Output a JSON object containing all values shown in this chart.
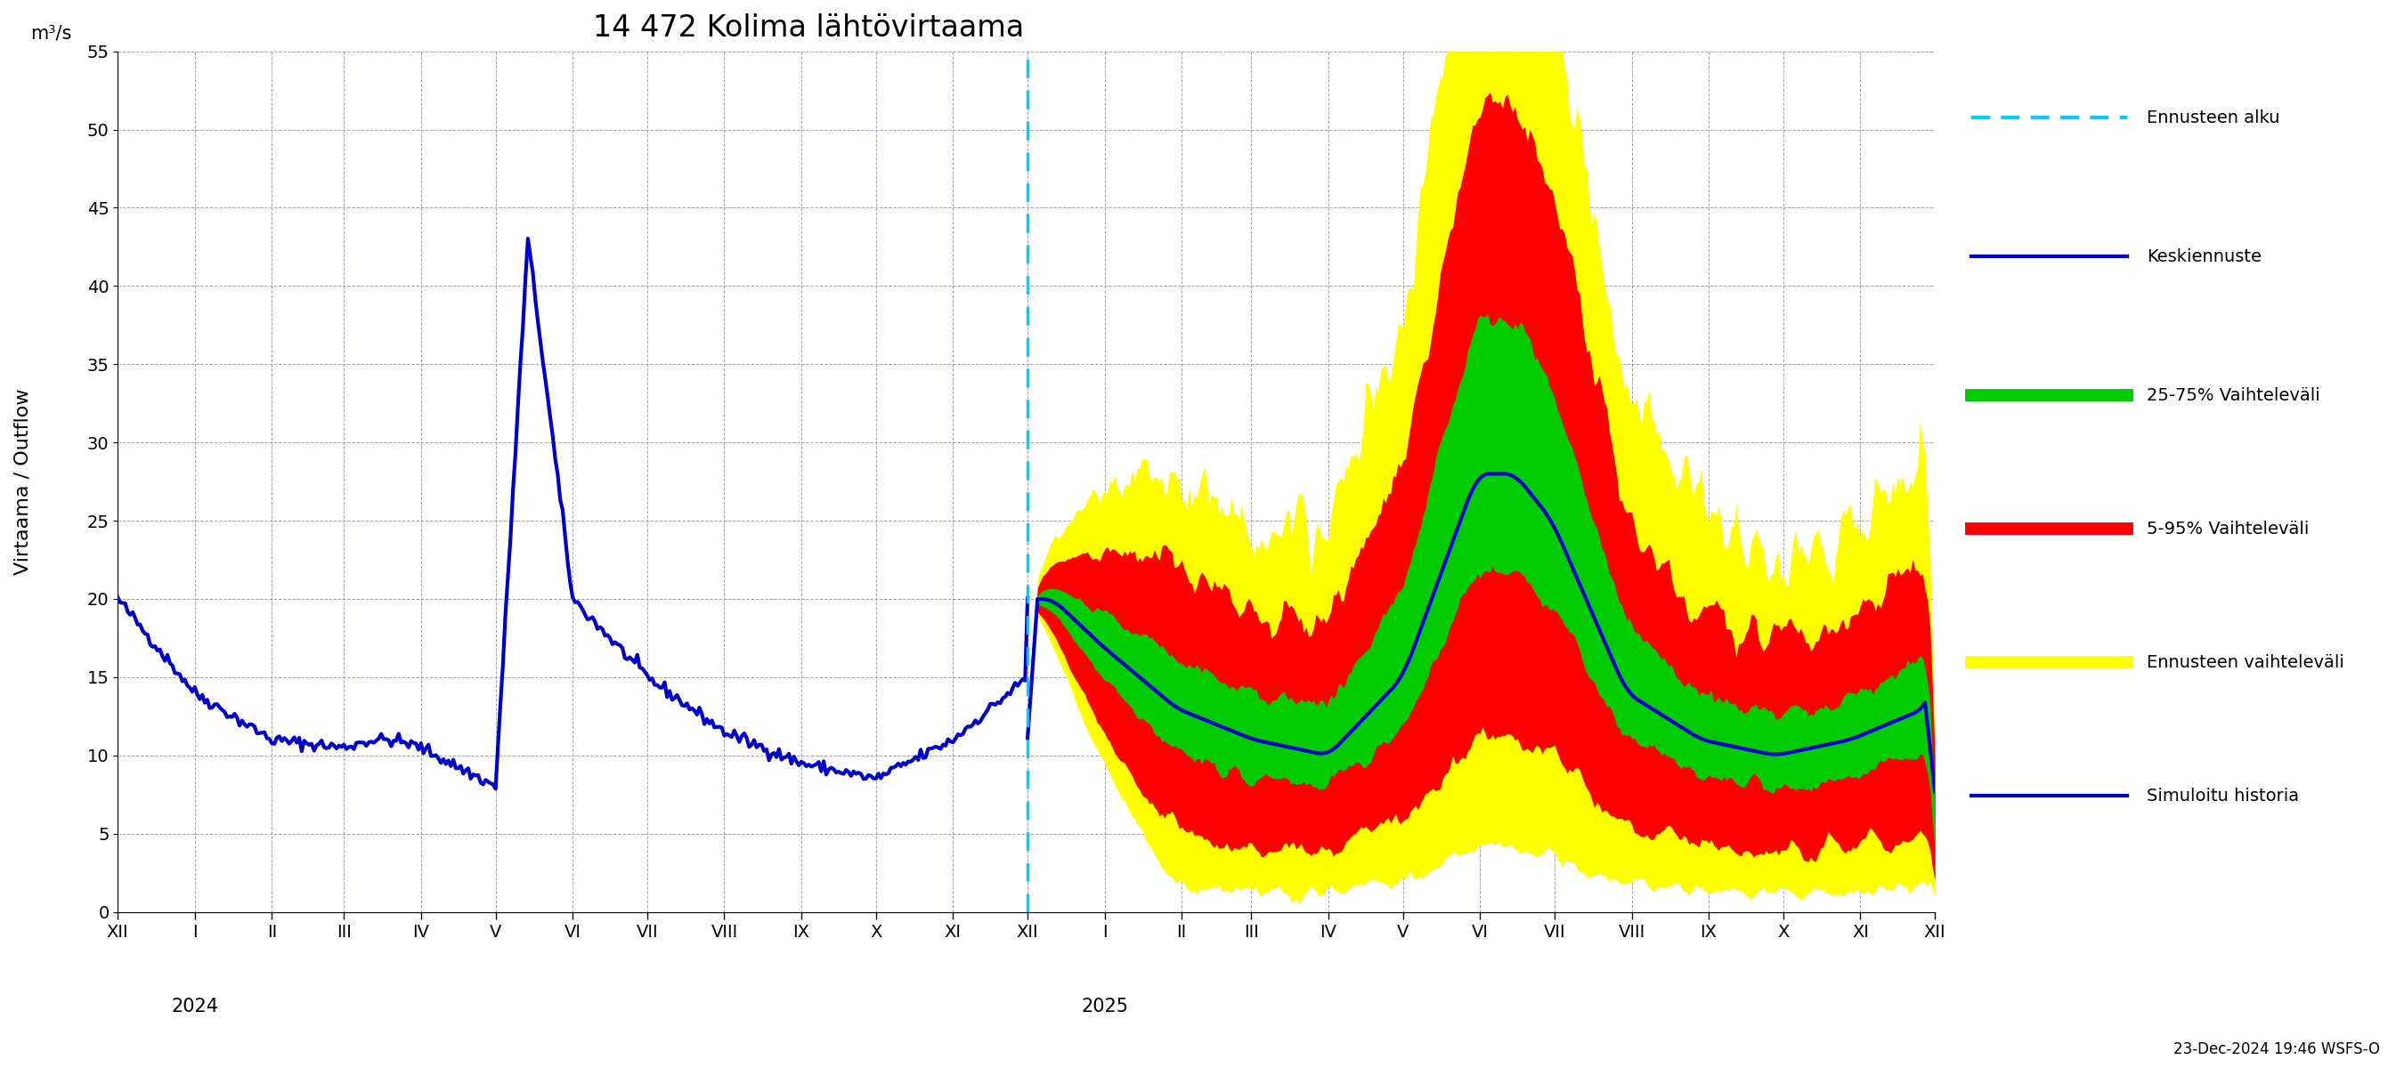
{
  "title": "14 472 Kolima lähtövirtaama",
  "ylabel_top": "m³/s",
  "ylabel_main": "Virtaama / Outflow",
  "xlabel_year_left": "2024",
  "xlabel_year_right": "2025",
  "footer_text": "23-Dec-2024 19:46 WSFS-O",
  "ylim": [
    0,
    55
  ],
  "yticks": [
    0,
    5,
    10,
    15,
    20,
    25,
    30,
    35,
    40,
    45,
    50,
    55
  ],
  "title_fontsize": 22,
  "label_fontsize": 15,
  "tick_fontsize": 14,
  "legend_fontsize": 14,
  "colors": {
    "history_line": "#0000cc",
    "median_line": "#0000cc",
    "p25_75_fill": "#00cc00",
    "p5_95_fill": "#ff0000",
    "ensemble_fill": "#ffff00",
    "forecast_start_line": "#00ccff",
    "simulated_line": "#0000cc",
    "grid": "#9999bb",
    "background": "#ffffff"
  },
  "legend_entries": [
    {
      "label": "Ennusteen alku",
      "color": "#00ccff",
      "style": "dashed"
    },
    {
      "label": "Keskiennuste",
      "color": "#0000cc",
      "style": "solid"
    },
    {
      "label": "25-75% Vaihteleväli",
      "color": "#00cc00",
      "style": "thick"
    },
    {
      "label": "5-95% Vaihteleväli",
      "color": "#ff0000",
      "style": "thick"
    },
    {
      "label": "Ennusteen vaihteleväli",
      "color": "#ffff00",
      "style": "thick"
    },
    {
      "label": "Simuloitu historia",
      "color": "#0000cc",
      "style": "solid"
    }
  ]
}
